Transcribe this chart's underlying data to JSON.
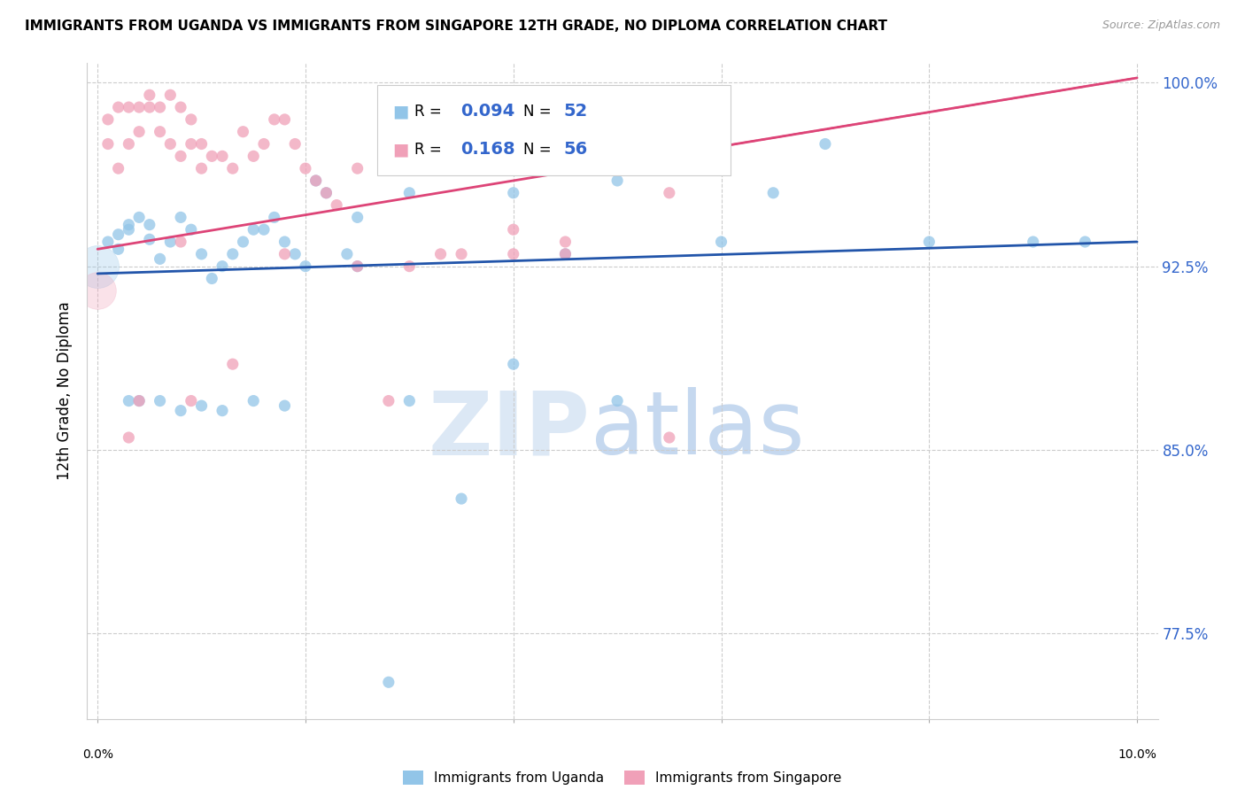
{
  "title": "IMMIGRANTS FROM UGANDA VS IMMIGRANTS FROM SINGAPORE 12TH GRADE, NO DIPLOMA CORRELATION CHART",
  "source": "Source: ZipAtlas.com",
  "ylabel": "12th Grade, No Diploma",
  "ylim": [
    0.74,
    1.008
  ],
  "xlim": [
    -0.001,
    0.102
  ],
  "yticks": [
    0.775,
    0.85,
    0.925,
    1.0
  ],
  "ytick_labels": [
    "77.5%",
    "85.0%",
    "92.5%",
    "100.0%"
  ],
  "background_color": "#ffffff",
  "grid_color": "#cccccc",
  "uganda_color": "#92C5E8",
  "singapore_color": "#F0A0B8",
  "uganda_line_color": "#2255AA",
  "singapore_line_color": "#DD4477",
  "legend_uganda_label": "Immigrants from Uganda",
  "legend_singapore_label": "Immigrants from Singapore",
  "R_uganda": 0.094,
  "N_uganda": 52,
  "R_singapore": 0.168,
  "N_singapore": 56,
  "uganda_line_x0": 0.0,
  "uganda_line_y0": 0.922,
  "uganda_line_x1": 0.1,
  "uganda_line_y1": 0.935,
  "singapore_line_x0": 0.0,
  "singapore_line_y0": 0.932,
  "singapore_line_x1": 0.1,
  "singapore_line_y1": 1.002,
  "uganda_scatter_x": [
    0.001,
    0.002,
    0.002,
    0.003,
    0.003,
    0.004,
    0.005,
    0.005,
    0.006,
    0.007,
    0.008,
    0.009,
    0.01,
    0.011,
    0.012,
    0.013,
    0.014,
    0.015,
    0.016,
    0.017,
    0.018,
    0.019,
    0.02,
    0.021,
    0.022,
    0.024,
    0.025,
    0.03,
    0.035,
    0.04,
    0.04,
    0.045,
    0.05,
    0.06,
    0.065,
    0.07,
    0.08,
    0.09,
    0.095,
    0.01,
    0.015,
    0.025,
    0.03,
    0.035,
    0.05,
    0.012,
    0.018,
    0.028,
    0.003,
    0.008,
    0.006,
    0.004
  ],
  "uganda_scatter_y": [
    0.935,
    0.938,
    0.932,
    0.94,
    0.942,
    0.945,
    0.936,
    0.942,
    0.928,
    0.935,
    0.945,
    0.94,
    0.93,
    0.92,
    0.925,
    0.93,
    0.935,
    0.94,
    0.94,
    0.945,
    0.935,
    0.93,
    0.925,
    0.96,
    0.955,
    0.93,
    0.945,
    0.955,
    0.97,
    0.955,
    0.885,
    0.93,
    0.96,
    0.935,
    0.955,
    0.975,
    0.935,
    0.935,
    0.935,
    0.868,
    0.87,
    0.925,
    0.87,
    0.83,
    0.87,
    0.866,
    0.868,
    0.755,
    0.87,
    0.866,
    0.87,
    0.87
  ],
  "singapore_scatter_x": [
    0.001,
    0.001,
    0.002,
    0.002,
    0.003,
    0.003,
    0.004,
    0.004,
    0.005,
    0.005,
    0.006,
    0.006,
    0.007,
    0.007,
    0.008,
    0.008,
    0.009,
    0.009,
    0.01,
    0.01,
    0.011,
    0.012,
    0.013,
    0.014,
    0.015,
    0.016,
    0.017,
    0.018,
    0.019,
    0.02,
    0.021,
    0.022,
    0.023,
    0.025,
    0.03,
    0.035,
    0.04,
    0.045,
    0.025,
    0.03,
    0.035,
    0.04,
    0.045,
    0.05,
    0.003,
    0.008,
    0.013,
    0.018,
    0.028,
    0.033,
    0.04,
    0.045,
    0.055,
    0.004,
    0.009,
    0.055
  ],
  "singapore_scatter_y": [
    0.975,
    0.985,
    0.99,
    0.965,
    0.975,
    0.99,
    0.99,
    0.98,
    0.99,
    0.995,
    0.99,
    0.98,
    0.995,
    0.975,
    0.99,
    0.97,
    0.975,
    0.985,
    0.975,
    0.965,
    0.97,
    0.97,
    0.965,
    0.98,
    0.97,
    0.975,
    0.985,
    0.985,
    0.975,
    0.965,
    0.96,
    0.955,
    0.95,
    0.965,
    0.975,
    0.985,
    0.975,
    0.97,
    0.925,
    0.925,
    0.93,
    0.93,
    0.935,
    0.975,
    0.855,
    0.935,
    0.885,
    0.93,
    0.87,
    0.93,
    0.94,
    0.93,
    0.955,
    0.87,
    0.87,
    0.855
  ]
}
